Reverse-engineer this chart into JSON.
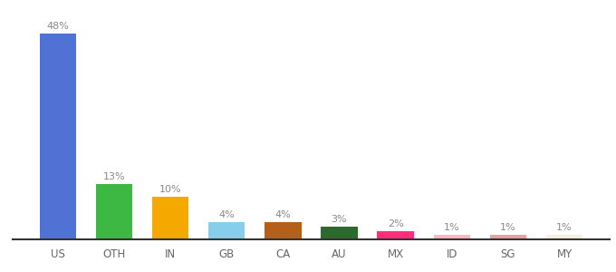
{
  "categories": [
    "US",
    "OTH",
    "IN",
    "GB",
    "CA",
    "AU",
    "MX",
    "ID",
    "SG",
    "MY"
  ],
  "values": [
    48,
    13,
    10,
    4,
    4,
    3,
    2,
    1,
    1,
    1
  ],
  "bar_colors": [
    "#4f72d4",
    "#3cb843",
    "#f5a800",
    "#87ceeb",
    "#b5601a",
    "#2d6a2d",
    "#ff2d7a",
    "#ffb6c1",
    "#e8a0a0",
    "#f5f0dc"
  ],
  "ylim": [
    0,
    54
  ],
  "label_color": "#888888",
  "background_color": "#ffffff",
  "bar_width": 0.65
}
